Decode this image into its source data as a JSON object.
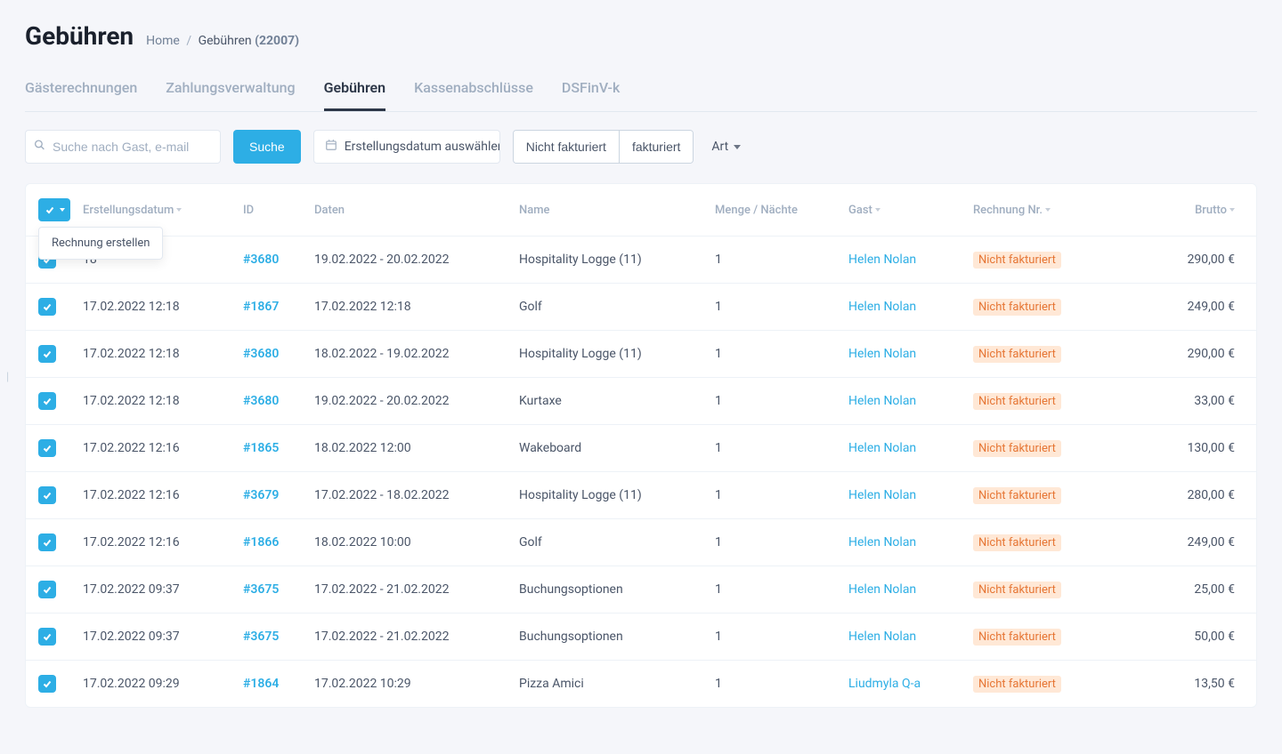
{
  "header": {
    "title": "Gebühren",
    "breadcrumb_home": "Home",
    "breadcrumb_current": "Gebühren",
    "breadcrumb_count": "(22007)"
  },
  "tabs": [
    {
      "label": "Gästerechnungen",
      "active": false
    },
    {
      "label": "Zahlungsverwaltung",
      "active": false
    },
    {
      "label": "Gebühren",
      "active": true
    },
    {
      "label": "Kassenabschlüsse",
      "active": false
    },
    {
      "label": "DSFinV-k",
      "active": false
    }
  ],
  "filters": {
    "search_placeholder": "Suche nach Gast, e-mail",
    "search_button": "Suche",
    "date_label": "Erstellungsdatum auswählen",
    "seg_not_invoiced": "Nicht fakturiert",
    "seg_invoiced": "fakturiert",
    "type_dropdown": "Art"
  },
  "bulk_action": {
    "create_invoice": "Rechnung erstellen"
  },
  "columns": {
    "created": "Erstellungsdatum",
    "id": "ID",
    "dates": "Daten",
    "name": "Name",
    "qty": "Menge / Nächte",
    "guest": "Gast",
    "invoice": "Rechnung Nr.",
    "gross": "Brutto"
  },
  "rows": [
    {
      "created": "18",
      "id": "#3680",
      "range": "19.02.2022 - 20.02.2022",
      "name": "Hospitality Logge (11)",
      "qty": "1",
      "guest": "Helen Nolan",
      "invoice": "Nicht fakturiert",
      "amount": "290,00 €"
    },
    {
      "created": "17.02.2022 12:18",
      "id": "#1867",
      "range": "17.02.2022 12:18",
      "name": "Golf",
      "qty": "1",
      "guest": "Helen Nolan",
      "invoice": "Nicht fakturiert",
      "amount": "249,00 €"
    },
    {
      "created": "17.02.2022 12:18",
      "id": "#3680",
      "range": "18.02.2022 - 19.02.2022",
      "name": "Hospitality Logge (11)",
      "qty": "1",
      "guest": "Helen Nolan",
      "invoice": "Nicht fakturiert",
      "amount": "290,00 €"
    },
    {
      "created": "17.02.2022 12:18",
      "id": "#3680",
      "range": "19.02.2022 - 20.02.2022",
      "name": "Kurtaxe",
      "qty": "1",
      "guest": "Helen Nolan",
      "invoice": "Nicht fakturiert",
      "amount": "33,00 €"
    },
    {
      "created": "17.02.2022 12:16",
      "id": "#1865",
      "range": "18.02.2022 12:00",
      "name": "Wakeboard",
      "qty": "1",
      "guest": "Helen Nolan",
      "invoice": "Nicht fakturiert",
      "amount": "130,00 €"
    },
    {
      "created": "17.02.2022 12:16",
      "id": "#3679",
      "range": "17.02.2022 - 18.02.2022",
      "name": "Hospitality Logge (11)",
      "qty": "1",
      "guest": "Helen Nolan",
      "invoice": "Nicht fakturiert",
      "amount": "280,00 €"
    },
    {
      "created": "17.02.2022 12:16",
      "id": "#1866",
      "range": "18.02.2022 10:00",
      "name": "Golf",
      "qty": "1",
      "guest": "Helen Nolan",
      "invoice": "Nicht fakturiert",
      "amount": "249,00 €"
    },
    {
      "created": "17.02.2022 09:37",
      "id": "#3675",
      "range": "17.02.2022 - 21.02.2022",
      "name": "Buchungsoptionen",
      "qty": "1",
      "guest": "Helen Nolan",
      "invoice": "Nicht fakturiert",
      "amount": "25,00 €"
    },
    {
      "created": "17.02.2022 09:37",
      "id": "#3675",
      "range": "17.02.2022 - 21.02.2022",
      "name": "Buchungsoptionen",
      "qty": "1",
      "guest": "Helen Nolan",
      "invoice": "Nicht fakturiert",
      "amount": "50,00 €"
    },
    {
      "created": "17.02.2022 09:29",
      "id": "#1864",
      "range": "17.02.2022 10:29",
      "name": "Pizza Amici",
      "qty": "1",
      "guest": "Liudmyla Q-a",
      "invoice": "Nicht fakturiert",
      "amount": "13,50 €"
    }
  ],
  "colors": {
    "primary": "#2daee5",
    "muted": "#a0aec0",
    "badge_bg": "#ffe8d6",
    "badge_fg": "#e67635",
    "border": "#edf2f7",
    "bg": "#f5f6fa"
  }
}
